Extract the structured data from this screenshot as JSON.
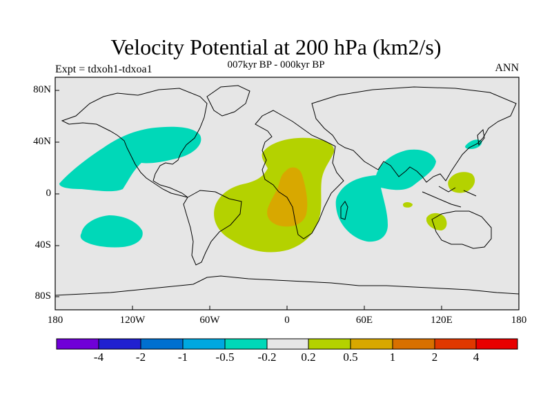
{
  "header": {
    "title": "Velocity Potential at 200 hPa (km2/s)",
    "subtitle": "007kyr BP - 000kyr BP",
    "left_label": "Expt = tdxoh1-tdxoa1",
    "right_label": "ANN"
  },
  "map": {
    "y_ticks": [
      "80N",
      "40N",
      "0",
      "40S",
      "80S"
    ],
    "x_ticks": [
      "180",
      "120W",
      "60W",
      "0",
      "60E",
      "120E",
      "180"
    ],
    "background_color": "#e6e6e6",
    "regions": [
      {
        "name": "north-pacific-negative",
        "sign": "negative",
        "color": "#00d8b8"
      },
      {
        "name": "south-pacific-negative",
        "sign": "negative",
        "color": "#00d8b8"
      },
      {
        "name": "indian-ocean-negative",
        "sign": "negative",
        "color": "#00d8b8"
      },
      {
        "name": "atlantic-africa-positive",
        "sign": "positive",
        "color": "#b4d200"
      },
      {
        "name": "atlantic-core-positive",
        "sign": "positive",
        "color": "#d8a800"
      },
      {
        "name": "west-pacific-positive",
        "sign": "positive",
        "color": "#b4d200"
      }
    ]
  },
  "colorbar": {
    "colors": [
      "#7000d8",
      "#2020d0",
      "#0070d0",
      "#00a8e0",
      "#00d8b8",
      "#e6e6e6",
      "#b4d200",
      "#d8a800",
      "#d87000",
      "#e03800",
      "#e80000"
    ],
    "labels": [
      "-4",
      "-2",
      "-1",
      "-0.5",
      "-0.2",
      "0.2",
      "0.5",
      "1",
      "2",
      "4"
    ]
  }
}
